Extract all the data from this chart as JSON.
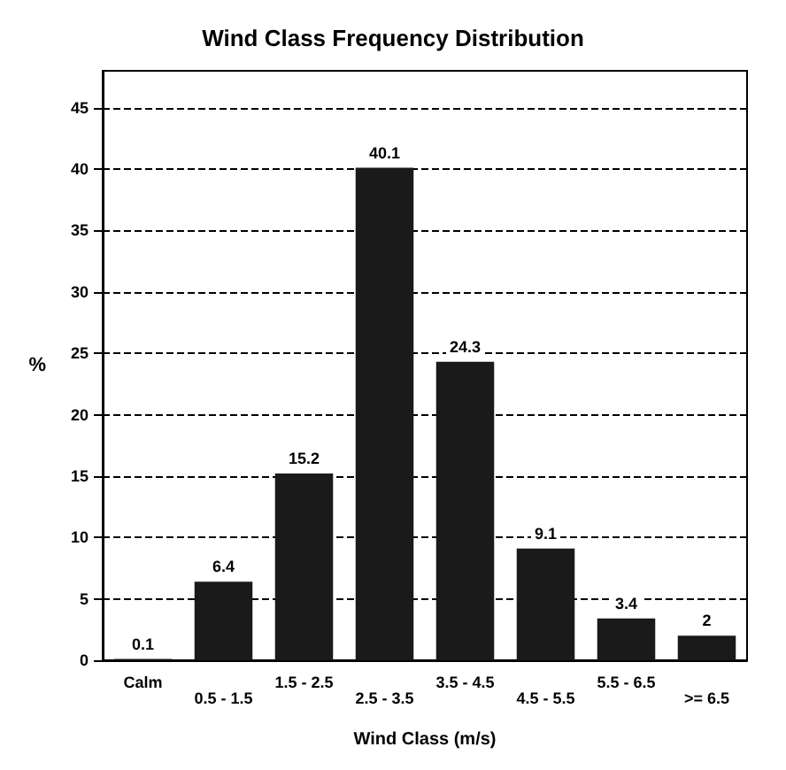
{
  "chart_data": {
    "type": "bar",
    "title": "Wind Class Frequency Distribution",
    "xlabel": "Wind Class (m/s)",
    "ylabel": "%",
    "categories": [
      "Calm",
      "0.5 - 1.5",
      "1.5 - 2.5",
      "2.5 - 3.5",
      "3.5 - 4.5",
      "4.5 - 5.5",
      "5.5 - 6.5",
      ">= 6.5"
    ],
    "values": [
      0.1,
      6.4,
      15.2,
      40.1,
      24.3,
      9.1,
      3.4,
      2.0
    ],
    "color": "#1a1a1a",
    "data_labels": true,
    "ylim": [
      0,
      48
    ],
    "yticks": [
      0,
      5,
      10,
      15,
      20,
      25,
      30,
      35,
      40,
      45
    ],
    "grid": "y"
  }
}
